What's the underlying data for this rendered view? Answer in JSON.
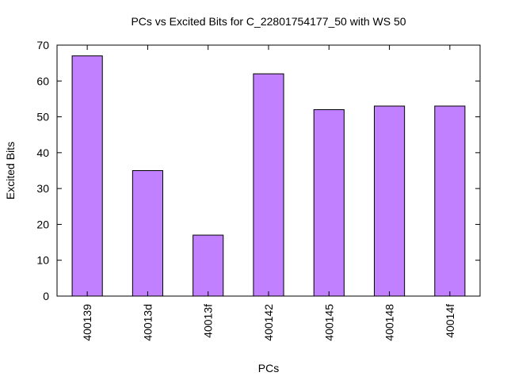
{
  "chart_data": {
    "type": "bar",
    "title": "PCs vs Excited Bits for C_22801754177_50 with WS 50",
    "xlabel": "PCs",
    "ylabel": "Excited Bits",
    "categories": [
      "400139",
      "40013d",
      "40013f",
      "400142",
      "400145",
      "400148",
      "40014f"
    ],
    "values": [
      67,
      35,
      17,
      62,
      52,
      53,
      53
    ],
    "ylim": [
      0,
      70
    ],
    "yticks": [
      0,
      10,
      20,
      30,
      40,
      50,
      60,
      70
    ],
    "grid": false,
    "legend": "none",
    "colors": {
      "bar_fill": "#c080ff",
      "bar_stroke": "#000000",
      "axis": "#000000"
    }
  }
}
